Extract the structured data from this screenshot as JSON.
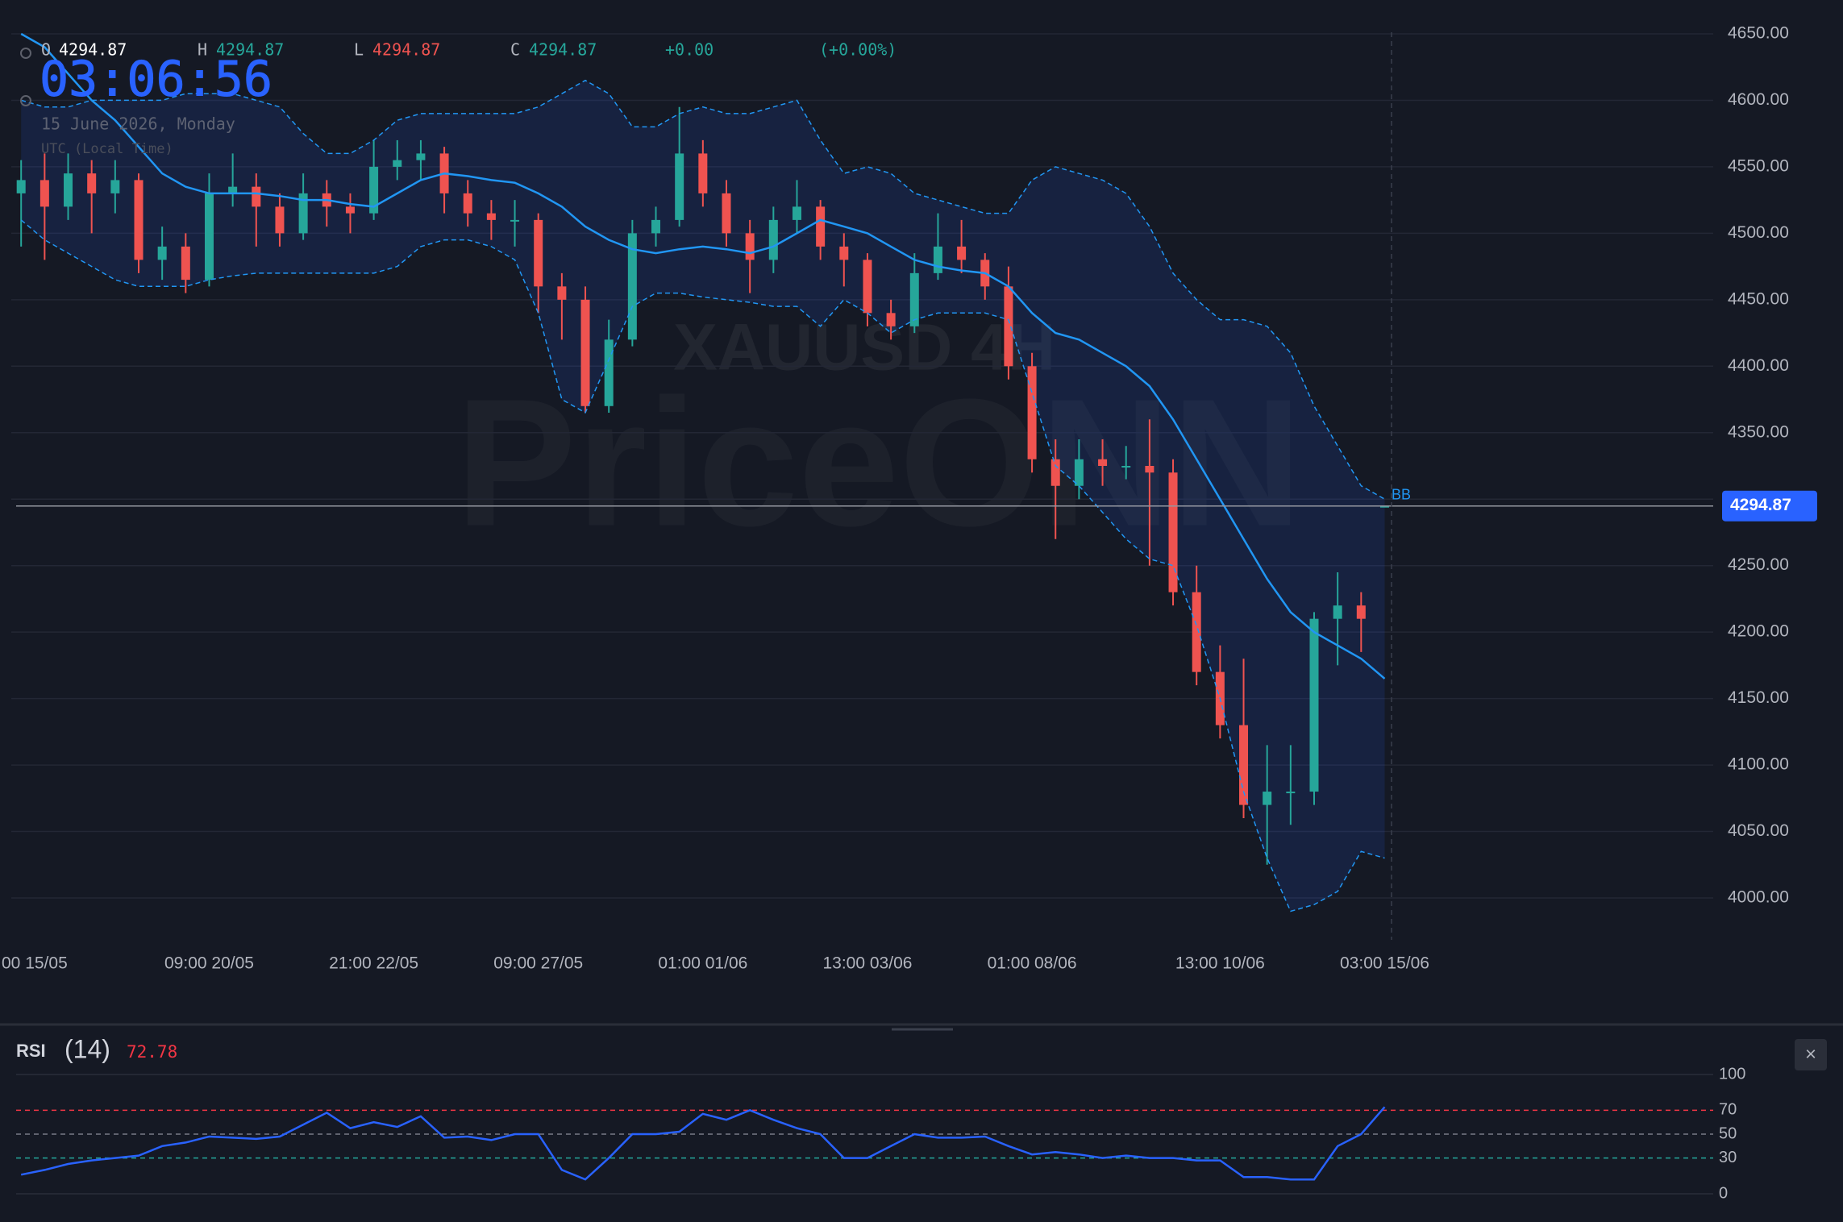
{
  "chart_data": [
    {
      "type": "candlestick",
      "categories": [
        null,
        "00 15/05",
        null,
        null,
        null,
        null,
        null,
        null,
        "09:00 20/05",
        null,
        null,
        null,
        null,
        null,
        null,
        "21:00 22/05",
        null,
        null,
        null,
        null,
        null,
        null,
        "09:00 27/05",
        null,
        null,
        null,
        null,
        null,
        null,
        "01:00 01/06",
        null,
        null,
        null,
        null,
        null,
        null,
        "13:00 03/06",
        null,
        null,
        null,
        null,
        null,
        null,
        "01:00 08/06",
        null,
        null,
        null,
        null,
        null,
        null,
        null,
        "13:00 10/06",
        null,
        null,
        null,
        null,
        null,
        null,
        "03:00 15/06"
      ],
      "candles": [
        [
          4530,
          4555,
          4490,
          4540
        ],
        [
          4540,
          4560,
          4480,
          4520
        ],
        [
          4520,
          4560,
          4510,
          4545
        ],
        [
          4545,
          4555,
          4500,
          4530
        ],
        [
          4530,
          4555,
          4515,
          4540
        ],
        [
          4540,
          4545,
          4470,
          4480
        ],
        [
          4480,
          4505,
          4465,
          4490
        ],
        [
          4490,
          4500,
          4455,
          4465
        ],
        [
          4465,
          4545,
          4460,
          4530
        ],
        [
          4530,
          4560,
          4520,
          4535
        ],
        [
          4535,
          4545,
          4490,
          4520
        ],
        [
          4520,
          4530,
          4490,
          4500
        ],
        [
          4500,
          4545,
          4495,
          4530
        ],
        [
          4530,
          4540,
          4505,
          4520
        ],
        [
          4520,
          4530,
          4500,
          4515
        ],
        [
          4515,
          4570,
          4510,
          4550
        ],
        [
          4550,
          4570,
          4540,
          4555
        ],
        [
          4555,
          4570,
          4540,
          4560
        ],
        [
          4560,
          4565,
          4515,
          4530
        ],
        [
          4530,
          4540,
          4505,
          4515
        ],
        [
          4515,
          4525,
          4495,
          4510
        ],
        [
          4510,
          4525,
          4490,
          4510
        ],
        [
          4510,
          4515,
          4440,
          4460
        ],
        [
          4460,
          4470,
          4420,
          4450
        ],
        [
          4450,
          4460,
          4365,
          4370
        ],
        [
          4370,
          4435,
          4365,
          4420
        ],
        [
          4420,
          4510,
          4415,
          4500
        ],
        [
          4500,
          4520,
          4490,
          4510
        ],
        [
          4510,
          4595,
          4505,
          4560
        ],
        [
          4560,
          4570,
          4520,
          4530
        ],
        [
          4530,
          4540,
          4490,
          4500
        ],
        [
          4500,
          4510,
          4455,
          4480
        ],
        [
          4480,
          4520,
          4470,
          4510
        ],
        [
          4510,
          4540,
          4500,
          4520
        ],
        [
          4520,
          4525,
          4480,
          4490
        ],
        [
          4490,
          4500,
          4460,
          4480
        ],
        [
          4480,
          4485,
          4430,
          4440
        ],
        [
          4440,
          4450,
          4420,
          4430
        ],
        [
          4430,
          4485,
          4425,
          4470
        ],
        [
          4470,
          4515,
          4465,
          4490
        ],
        [
          4490,
          4510,
          4470,
          4480
        ],
        [
          4480,
          4485,
          4450,
          4460
        ],
        [
          4460,
          4475,
          4390,
          4400
        ],
        [
          4400,
          4410,
          4320,
          4330
        ],
        [
          4330,
          4345,
          4270,
          4310
        ],
        [
          4310,
          4345,
          4300,
          4330
        ],
        [
          4330,
          4345,
          4310,
          4325
        ],
        [
          4325,
          4340,
          4315,
          4325
        ],
        [
          4325,
          4360,
          4250,
          4320
        ],
        [
          4320,
          4330,
          4220,
          4230
        ],
        [
          4230,
          4250,
          4160,
          4170
        ],
        [
          4170,
          4190,
          4120,
          4130
        ],
        [
          4130,
          4180,
          4060,
          4070
        ],
        [
          4070,
          4115,
          4025,
          4080
        ],
        [
          4080,
          4115,
          4055,
          4080
        ],
        [
          4080,
          4215,
          4070,
          4210
        ],
        [
          4210,
          4245,
          4175,
          4220
        ],
        [
          4220,
          4230,
          4185,
          4210
        ],
        [
          4294.87,
          4294.87,
          4294.87,
          4294.87
        ]
      ],
      "up_color": "#26a69a",
      "down_color": "#ef5350",
      "bb": {
        "name": "BB",
        "color": "#2196f3",
        "upper": [
          4600,
          4595,
          4595,
          4600,
          4600,
          4600,
          4600,
          4605,
          4605,
          4605,
          4600,
          4595,
          4575,
          4560,
          4560,
          4570,
          4585,
          4590,
          4590,
          4590,
          4590,
          4590,
          4595,
          4605,
          4615,
          4605,
          4580,
          4580,
          4590,
          4595,
          4590,
          4590,
          4595,
          4600,
          4570,
          4545,
          4550,
          4545,
          4530,
          4525,
          4520,
          4515,
          4515,
          4540,
          4550,
          4545,
          4540,
          4530,
          4505,
          4470,
          4450,
          4435,
          4435,
          4430,
          4410,
          4370,
          4340,
          4310,
          4300
        ],
        "middle": [
          4650,
          4640,
          4620,
          4600,
          4585,
          4565,
          4545,
          4535,
          4530,
          4530,
          4530,
          4528,
          4525,
          4525,
          4522,
          4520,
          4530,
          4540,
          4545,
          4543,
          4540,
          4538,
          4530,
          4520,
          4505,
          4495,
          4488,
          4485,
          4488,
          4490,
          4488,
          4485,
          4490,
          4500,
          4510,
          4505,
          4500,
          4490,
          4480,
          4475,
          4472,
          4470,
          4460,
          4440,
          4425,
          4420,
          4410,
          4400,
          4385,
          4360,
          4330,
          4300,
          4270,
          4240,
          4215,
          4200,
          4190,
          4180,
          4165
        ],
        "lower": [
          4510,
          4495,
          4485,
          4475,
          4465,
          4460,
          4460,
          4460,
          4465,
          4468,
          4470,
          4470,
          4470,
          4470,
          4470,
          4470,
          4475,
          4490,
          4495,
          4495,
          4490,
          4480,
          4440,
          4375,
          4365,
          4405,
          4445,
          4455,
          4455,
          4452,
          4450,
          4448,
          4445,
          4445,
          4430,
          4450,
          4440,
          4425,
          4435,
          4440,
          4440,
          4440,
          4435,
          4380,
          4325,
          4310,
          4290,
          4270,
          4255,
          4250,
          4205,
          4150,
          4080,
          4030,
          3990,
          3995,
          4005,
          4035,
          4030
        ]
      },
      "ylim": [
        3980,
        4670
      ],
      "yticks": [
        {
          "value": 4650,
          "label": "4650.00"
        },
        {
          "value": 4600,
          "label": "4600.00"
        },
        {
          "value": 4550,
          "label": "4550.00"
        },
        {
          "value": 4500,
          "label": "4500.00"
        },
        {
          "value": 4450,
          "label": "4450.00"
        },
        {
          "value": 4400,
          "label": "4400.00"
        },
        {
          "value": 4350,
          "label": "4350.00"
        },
        {
          "value": 4300,
          "label": "4300.00"
        },
        {
          "value": 4250,
          "label": "4250.00"
        },
        {
          "value": 4200,
          "label": "4200.00"
        },
        {
          "value": 4150,
          "label": "4150.00"
        },
        {
          "value": 4100,
          "label": "4100.00"
        },
        {
          "value": 4050,
          "label": "4050.00"
        },
        {
          "value": 4000,
          "label": "4000.00"
        }
      ],
      "grid": true,
      "last_price": 4294.87,
      "header": {
        "labels": [
          "O",
          "H",
          "L",
          "C"
        ],
        "values": [
          4294.87,
          4294.87,
          4294.87,
          4294.87
        ],
        "change": {
          "value": 0,
          "label": "+0.00"
        },
        "change_pct": {
          "value": 0,
          "label": "(+0.00%)"
        }
      },
      "clock": "03:06:56",
      "date": "15 June 2026, Monday",
      "timezone": "UTC (Local Time)",
      "watermark": {
        "symbol": "XAUUSD 4H",
        "brand": "PriceONN"
      }
    },
    {
      "type": "line",
      "title": "RSI",
      "subtitle": "(14)",
      "last_value": 72.78,
      "color": "#2962ff",
      "values": [
        16,
        20,
        25,
        28,
        30,
        32,
        40,
        43,
        48,
        47,
        46,
        48,
        58,
        68,
        55,
        60,
        56,
        65,
        47,
        48,
        45,
        50,
        50,
        20,
        12,
        30,
        50,
        50,
        52,
        67,
        62,
        70,
        62,
        55,
        50,
        30,
        30,
        40,
        50,
        47,
        47,
        48,
        40,
        33,
        35,
        33,
        30,
        32,
        30,
        30,
        28,
        28,
        14,
        14,
        12,
        12,
        40,
        50,
        72.78
      ],
      "ylim": [
        0,
        100
      ],
      "yticks": [
        100,
        70,
        50,
        30,
        0
      ],
      "grid_colors": [
        "#2a2e39",
        "#f23645",
        "#787b86",
        "#26a69a",
        "#2a2e39"
      ],
      "grid_dashed": [
        false,
        true,
        true,
        true,
        false
      ],
      "close": "×"
    }
  ]
}
